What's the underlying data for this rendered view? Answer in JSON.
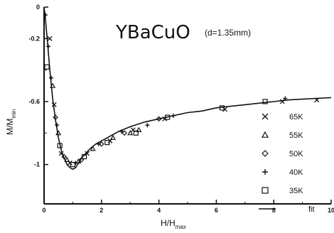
{
  "chart_data": {
    "type": "scatter",
    "title": "YBaCuO",
    "subtitle": "(d=1.35mm)",
    "xlabel": {
      "main": "H/H",
      "sub": "max"
    },
    "ylabel": {
      "main": "M/M",
      "sub": "min"
    },
    "xlim": [
      0,
      10
    ],
    "ylim": [
      -1.25,
      0
    ],
    "x_ticks": [
      0,
      2,
      4,
      6,
      8,
      10
    ],
    "x_tick_labels": [
      "0",
      "2",
      "4",
      "6",
      "8",
      "10"
    ],
    "y_ticks": [
      0,
      -0.2,
      -0.6,
      -1
    ],
    "y_tick_labels": [
      "0",
      "-0.2",
      "-0.6",
      "-1"
    ],
    "grid": false,
    "legend_position": "right",
    "series": [
      {
        "name": "65K",
        "marker": "x",
        "x": [
          0.2,
          0.35,
          0.6,
          0.9,
          1.5,
          2.3,
          3.1,
          4.2,
          6.3,
          8.3,
          9.5
        ],
        "y": [
          -0.2,
          -0.62,
          -0.93,
          -0.99,
          -0.93,
          -0.85,
          -0.78,
          -0.71,
          -0.65,
          -0.6,
          -0.59
        ]
      },
      {
        "name": "55K",
        "marker": "triangle",
        "x": [
          0.3,
          0.5,
          0.8,
          1.2,
          1.7,
          2.4,
          3.0,
          3.3
        ],
        "y": [
          -0.5,
          -0.8,
          -0.97,
          -0.98,
          -0.9,
          -0.83,
          -0.8,
          -0.78
        ]
      },
      {
        "name": "50K",
        "marker": "diamond",
        "x": [
          0.4,
          0.7,
          1.3,
          2.0,
          2.8,
          4.0
        ],
        "y": [
          -0.7,
          -0.95,
          -0.97,
          -0.87,
          -0.8,
          -0.71
        ]
      },
      {
        "name": "40K",
        "marker": "plus",
        "x": [
          0.05,
          0.15,
          0.25,
          0.45,
          1.1,
          1.9,
          2.7,
          3.6,
          4.5,
          8.4
        ],
        "y": [
          -0.05,
          -0.25,
          -0.45,
          -0.75,
          -0.99,
          -0.87,
          -0.79,
          -0.75,
          -0.69,
          -0.58
        ]
      },
      {
        "name": "35K",
        "marker": "square",
        "x": [
          0.1,
          0.55,
          1.0,
          1.4,
          2.2,
          3.2,
          4.3,
          6.2,
          7.7
        ],
        "y": [
          -0.38,
          -0.88,
          -1.0,
          -0.95,
          -0.86,
          -0.8,
          -0.7,
          -0.64,
          -0.6
        ]
      }
    ],
    "fit": {
      "name": "fit",
      "x": [
        0,
        0.05,
        0.1,
        0.15,
        0.2,
        0.3,
        0.4,
        0.5,
        0.6,
        0.7,
        0.8,
        0.9,
        1.0,
        1.1,
        1.2,
        1.3,
        1.4,
        1.6,
        1.8,
        2.0,
        2.3,
        2.6,
        3.0,
        3.5,
        4.0,
        4.5,
        5.0,
        5.5,
        6.0,
        6.5,
        7.0,
        7.5,
        8.0,
        8.5,
        9.0,
        9.5,
        10.0
      ],
      "y": [
        0.0,
        -0.08,
        -0.18,
        -0.29,
        -0.4,
        -0.58,
        -0.72,
        -0.83,
        -0.91,
        -0.96,
        -1.0,
        -1.02,
        -1.03,
        -1.02,
        -0.99,
        -0.96,
        -0.94,
        -0.9,
        -0.87,
        -0.85,
        -0.82,
        -0.79,
        -0.76,
        -0.73,
        -0.71,
        -0.69,
        -0.67,
        -0.66,
        -0.64,
        -0.63,
        -0.62,
        -0.61,
        -0.6,
        -0.59,
        -0.585,
        -0.58,
        -0.575
      ]
    }
  }
}
